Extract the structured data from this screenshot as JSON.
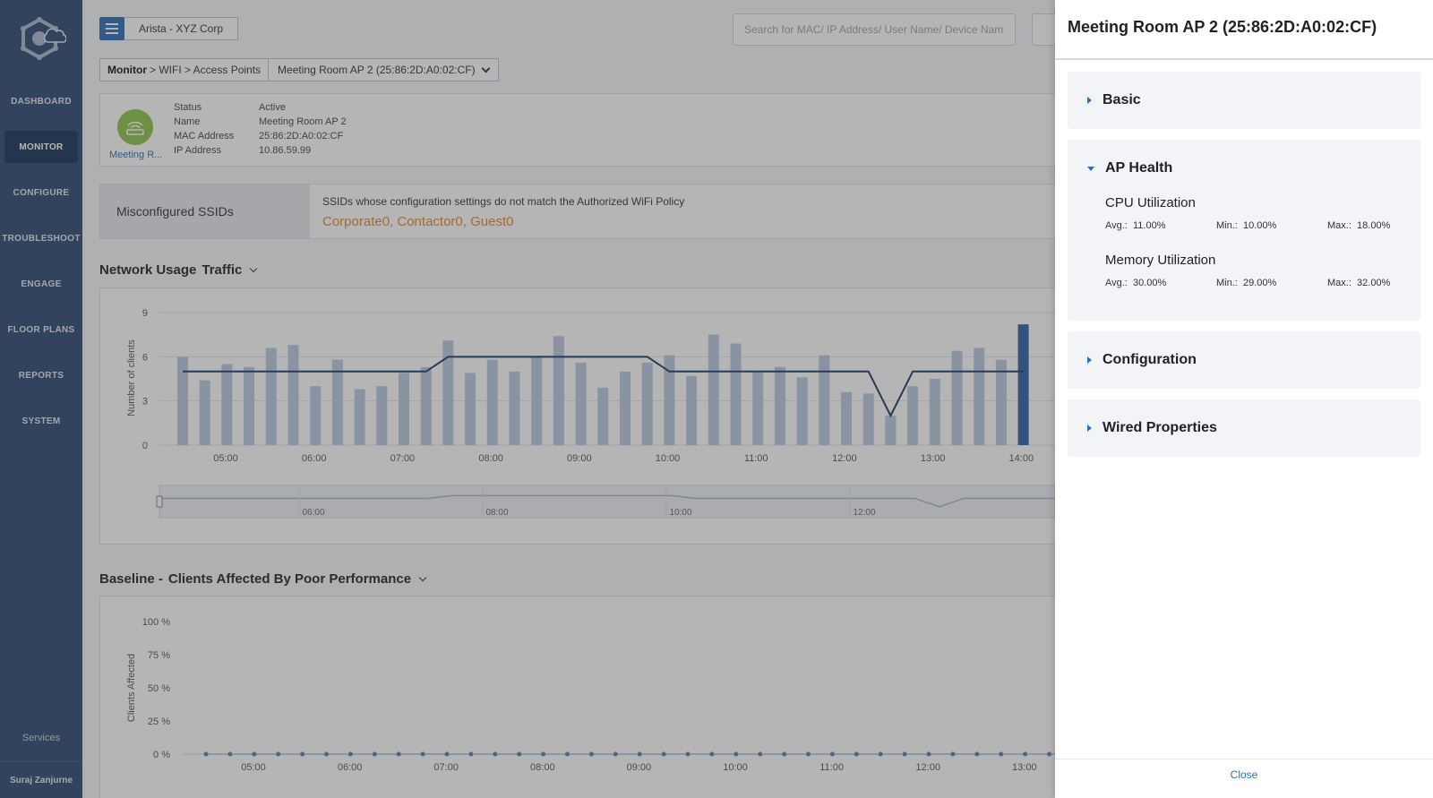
{
  "sidebar": {
    "items": [
      {
        "label": "DASHBOARD"
      },
      {
        "label": "MONITOR"
      },
      {
        "label": "CONFIGURE"
      },
      {
        "label": "TROUBLESHOOT"
      },
      {
        "label": "ENGAGE"
      },
      {
        "label": "FLOOR PLANS"
      },
      {
        "label": "REPORTS"
      },
      {
        "label": "SYSTEM"
      }
    ],
    "active": "MONITOR",
    "services": "Services",
    "user": "Suraj Zanjurne"
  },
  "header": {
    "tenant": "Arista - XYZ Corp",
    "search_placeholder": "Search for MAC/ IP Address/ User Name/ Device Name..."
  },
  "breadcrumb": {
    "root": "Monitor",
    "path": " > WIFI > Access Points",
    "current": "Meeting Room AP 2 (25:86:2D:A0:02:CF)"
  },
  "device": {
    "short_name": "Meeting R...",
    "fields": [
      {
        "label": "Status",
        "value": "Active"
      },
      {
        "label": "Name",
        "value": "Meeting Room AP 2"
      },
      {
        "label": "MAC Address",
        "value": "25:86:2D:A0:02:CF"
      },
      {
        "label": "IP Address",
        "value": "10.86.59.99"
      }
    ]
  },
  "misconfigured": {
    "label": "Misconfigured SSIDs",
    "description": "SSIDs whose configuration settings do not match the Authorized WiFi Policy",
    "ssids": "Corporate0, Contactor0, Guest0"
  },
  "network_usage": {
    "title": "Network Usage",
    "selector": "Traffic"
  },
  "baseline": {
    "title": "Baseline -",
    "selector": "Clients Affected By Poor Performance"
  },
  "chart_data": [
    {
      "type": "bar",
      "ylabel": "Number of clients",
      "ylim": [
        0,
        9
      ],
      "yticks": [
        "0",
        "3",
        "6",
        "9"
      ],
      "xticks": [
        "05:00",
        "06:00",
        "07:00",
        "08:00",
        "09:00",
        "10:00",
        "11:00",
        "12:00",
        "13:00",
        "14:00"
      ],
      "navigator_ticks": [
        "06:00",
        "08:00",
        "10:00",
        "12:00"
      ],
      "bars": [
        6.0,
        4.4,
        5.5,
        5.3,
        6.6,
        6.8,
        4.0,
        5.8,
        3.8,
        4.0,
        4.9,
        5.3,
        7.1,
        4.9,
        5.8,
        5.0,
        6.0,
        7.4,
        5.6,
        3.9,
        5.0,
        5.6,
        6.1,
        4.7,
        7.5,
        6.9,
        5.0,
        5.3,
        4.6,
        6.1,
        3.6,
        3.5,
        2.0,
        4.0,
        4.5,
        6.4,
        6.6,
        5.8,
        8.2
      ],
      "line": [
        5,
        5,
        5,
        5,
        5,
        5,
        5,
        5,
        5,
        5,
        5,
        5,
        6,
        6,
        6,
        6,
        6,
        6,
        6,
        6,
        6,
        6,
        5,
        5,
        5,
        5,
        5,
        5,
        5,
        5,
        5,
        5,
        2,
        5,
        5,
        5,
        5,
        5,
        5
      ]
    },
    {
      "type": "scatter",
      "ylabel": "Clients Affected",
      "ylim": [
        0,
        100
      ],
      "yticks": [
        "0 %",
        "25 %",
        "50 %",
        "75 %",
        "100 %"
      ],
      "xticks": [
        "05:00",
        "06:00",
        "07:00",
        "08:00",
        "09:00",
        "10:00",
        "11:00",
        "12:00",
        "13:00"
      ],
      "values": [
        0,
        0,
        0,
        0,
        0,
        0,
        0,
        0,
        0,
        0,
        0,
        0,
        0,
        0,
        0,
        0,
        0,
        0,
        0,
        0,
        0,
        0,
        0,
        0,
        0,
        0,
        0,
        0,
        0,
        0,
        0,
        0,
        0,
        0,
        0,
        0,
        0
      ]
    }
  ],
  "drawer": {
    "title": "Meeting Room AP 2 (25:86:2D:A0:02:CF)",
    "sections": {
      "basic": "Basic",
      "ap_health": "AP Health",
      "configuration": "Configuration",
      "wired": "Wired Properties"
    },
    "cpu": {
      "title": "CPU Utilization",
      "avg_label": "Avg.:",
      "avg": "11.00%",
      "min_label": "Min.:",
      "min": "10.00%",
      "max_label": "Max.:",
      "max": "18.00%"
    },
    "memory": {
      "title": "Memory Utilization",
      "avg_label": "Avg.:",
      "avg": "30.00%",
      "min_label": "Min.:",
      "min": "29.00%",
      "max_label": "Max.:",
      "max": "32.00%"
    },
    "close": "Close"
  },
  "colors": {
    "sidebar": "#2c4a72",
    "accent": "#2e6fb8",
    "ssid_warning": "#e08a2a",
    "bar": "#b9c9e0",
    "bar_highlight": "#2e5fa8",
    "line": "#1b3a66"
  }
}
